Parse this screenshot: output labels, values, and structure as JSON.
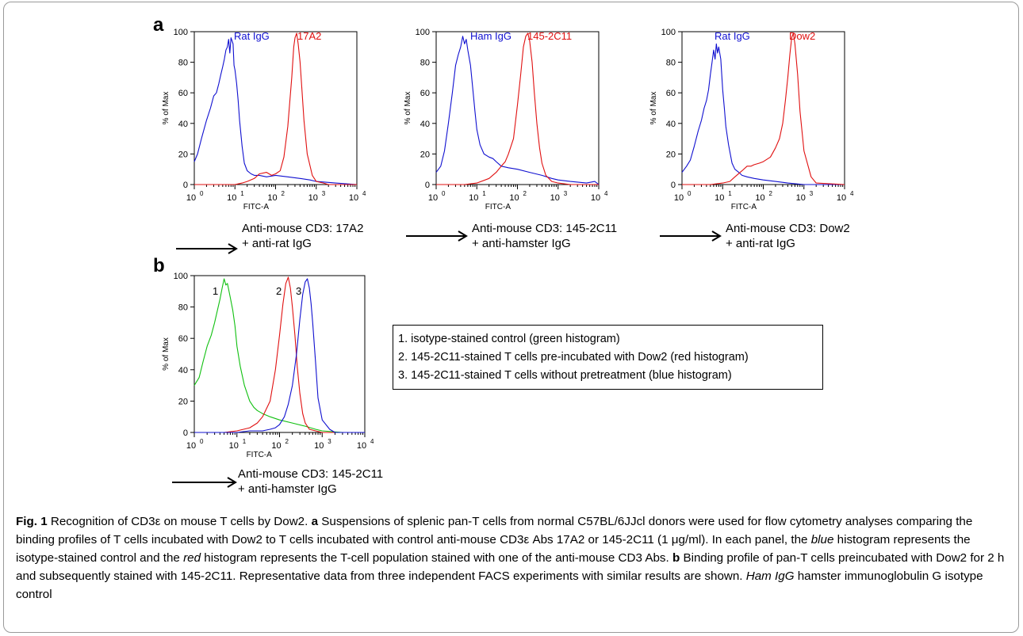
{
  "panel_labels": {
    "a": "a",
    "b": "b"
  },
  "chart_data": [
    {
      "type": "line",
      "ylabel": "% of Max",
      "xlabel": "FITC-A",
      "x_scale": "log",
      "xlim": [
        1,
        10000
      ],
      "ylim": [
        0,
        100
      ],
      "x_ticks": [
        1,
        10,
        100,
        1000,
        10000
      ],
      "x_tick_exp": [
        "0",
        "1",
        "2",
        "3",
        "4"
      ],
      "y_ticks": [
        0,
        20,
        40,
        60,
        80,
        100
      ],
      "labels": [
        {
          "text": "Rat IgG",
          "color": "#1010d0"
        },
        {
          "text": "17A2",
          "color": "#e01010"
        }
      ],
      "series": [
        {
          "name": "Rat IgG",
          "color": "#1010d0",
          "x": [
            1,
            1.2,
            1.5,
            2,
            2.5,
            3,
            3.5,
            4,
            4.5,
            5,
            5.5,
            6,
            6.5,
            7,
            7.5,
            8,
            8.5,
            9,
            9.5,
            10,
            11,
            12,
            13,
            15,
            17,
            20,
            25,
            30,
            40,
            60,
            100,
            200,
            400,
            700,
            1000,
            3000,
            10000
          ],
          "y": [
            15,
            20,
            30,
            42,
            50,
            58,
            60,
            66,
            72,
            77,
            82,
            88,
            90,
            95,
            86,
            96,
            94,
            92,
            78,
            75,
            66,
            55,
            42,
            25,
            14,
            9,
            7,
            6,
            6,
            5,
            6,
            5,
            4,
            3,
            2,
            1,
            0
          ]
        },
        {
          "name": "17A2",
          "color": "#e01010",
          "x": [
            1,
            10,
            15,
            20,
            30,
            40,
            60,
            80,
            100,
            130,
            160,
            200,
            250,
            280,
            300,
            330,
            360,
            400,
            450,
            500,
            600,
            800,
            1000,
            1500,
            2000,
            10000
          ],
          "y": [
            0,
            0,
            1,
            2,
            4,
            7,
            8,
            6,
            7,
            9,
            18,
            38,
            70,
            90,
            96,
            99,
            92,
            80,
            60,
            42,
            20,
            6,
            2,
            1,
            0,
            0
          ]
        }
      ]
    },
    {
      "type": "line",
      "ylabel": "% of Max",
      "xlabel": "FITC-A",
      "x_scale": "log",
      "xlim": [
        1,
        10000
      ],
      "ylim": [
        0,
        100
      ],
      "x_ticks": [
        1,
        10,
        100,
        1000,
        10000
      ],
      "x_tick_exp": [
        "0",
        "1",
        "2",
        "3",
        "4"
      ],
      "y_ticks": [
        0,
        20,
        40,
        60,
        80,
        100
      ],
      "labels": [
        {
          "text": "Ham IgG",
          "color": "#1010d0"
        },
        {
          "text": "145-2C11",
          "color": "#e01010"
        }
      ],
      "series": [
        {
          "name": "Ham IgG",
          "color": "#1010d0",
          "x": [
            1,
            1.3,
            1.6,
            2,
            2.5,
            3,
            3.5,
            4,
            4.5,
            5,
            5.5,
            6,
            7,
            8,
            9,
            10,
            12,
            15,
            20,
            25,
            30,
            40,
            60,
            100,
            200,
            400,
            700,
            1000,
            2000,
            5000,
            8000,
            10000
          ],
          "y": [
            8,
            12,
            22,
            40,
            60,
            78,
            85,
            90,
            97,
            92,
            95,
            88,
            78,
            62,
            48,
            36,
            26,
            20,
            18,
            17,
            15,
            12,
            11,
            10,
            8,
            6,
            4,
            3,
            2,
            1,
            2,
            0
          ]
        },
        {
          "name": "145-2C11",
          "color": "#e01010",
          "x": [
            1,
            5,
            10,
            20,
            30,
            40,
            50,
            60,
            80,
            100,
            120,
            140,
            160,
            180,
            200,
            230,
            260,
            300,
            350,
            400,
            500,
            700,
            1000,
            2000,
            10000
          ],
          "y": [
            0,
            0,
            1,
            4,
            8,
            12,
            15,
            20,
            30,
            52,
            72,
            90,
            97,
            99,
            94,
            80,
            60,
            40,
            24,
            14,
            6,
            2,
            1,
            0,
            0
          ]
        }
      ]
    },
    {
      "type": "line",
      "ylabel": "% of Max",
      "xlabel": "FITC-A",
      "x_scale": "log",
      "xlim": [
        1,
        10000
      ],
      "ylim": [
        0,
        100
      ],
      "x_ticks": [
        1,
        10,
        100,
        1000,
        10000
      ],
      "x_tick_exp": [
        "0",
        "1",
        "2",
        "3",
        "4"
      ],
      "y_ticks": [
        0,
        20,
        40,
        60,
        80,
        100
      ],
      "labels": [
        {
          "text": "Rat IgG",
          "color": "#1010d0"
        },
        {
          "text": "Dow2",
          "color": "#e01010"
        }
      ],
      "series": [
        {
          "name": "Rat IgG",
          "color": "#1010d0",
          "x": [
            1,
            1.3,
            1.6,
            2,
            2.5,
            3,
            3.5,
            4,
            4.5,
            5,
            5.5,
            6,
            6.5,
            7,
            7.5,
            8,
            9,
            10,
            11,
            12,
            14,
            17,
            20,
            25,
            30,
            40,
            60,
            100,
            200,
            400,
            1000,
            3000,
            10000
          ],
          "y": [
            8,
            12,
            16,
            25,
            35,
            42,
            50,
            55,
            62,
            72,
            80,
            88,
            82,
            92,
            86,
            90,
            82,
            62,
            50,
            38,
            26,
            14,
            10,
            8,
            6,
            5,
            4,
            3,
            2,
            1,
            0,
            0,
            0
          ]
        },
        {
          "name": "Dow2",
          "color": "#e01010",
          "x": [
            1,
            5,
            10,
            15,
            20,
            30,
            40,
            50,
            60,
            80,
            100,
            150,
            200,
            250,
            300,
            350,
            400,
            450,
            500,
            550,
            600,
            700,
            800,
            1000,
            1500,
            2000,
            10000
          ],
          "y": [
            0,
            0,
            1,
            2,
            5,
            9,
            12,
            12,
            13,
            14,
            15,
            18,
            24,
            30,
            40,
            55,
            70,
            85,
            96,
            99,
            92,
            72,
            48,
            22,
            5,
            1,
            0
          ]
        }
      ]
    },
    {
      "type": "line",
      "ylabel": "% of Max",
      "xlabel": "FITC-A",
      "x_scale": "log",
      "xlim": [
        1,
        10000
      ],
      "ylim": [
        0,
        100
      ],
      "x_ticks": [
        1,
        10,
        100,
        1000,
        10000
      ],
      "x_tick_exp": [
        "0",
        "1",
        "2",
        "3",
        "4"
      ],
      "y_ticks": [
        0,
        20,
        40,
        60,
        80,
        100
      ],
      "labels": [
        {
          "text": "1",
          "color": "#000000"
        },
        {
          "text": "2",
          "color": "#000000"
        },
        {
          "text": "3",
          "color": "#000000"
        }
      ],
      "series": [
        {
          "name": "1",
          "color": "#10c010",
          "x": [
            1,
            1.3,
            1.6,
            2,
            2.5,
            3,
            3.5,
            4,
            4.5,
            5,
            5.5,
            6,
            7,
            8,
            9,
            10,
            12,
            15,
            20,
            25,
            30,
            40,
            60,
            100,
            200,
            400,
            700,
            1000,
            3000,
            10000
          ],
          "y": [
            30,
            35,
            45,
            55,
            62,
            70,
            78,
            85,
            92,
            98,
            94,
            95,
            86,
            78,
            68,
            55,
            42,
            30,
            20,
            16,
            14,
            12,
            10,
            8,
            6,
            4,
            2,
            1,
            0,
            0
          ]
        },
        {
          "name": "2",
          "color": "#e01010",
          "x": [
            1,
            5,
            10,
            20,
            30,
            40,
            60,
            80,
            100,
            120,
            140,
            160,
            180,
            200,
            230,
            260,
            300,
            350,
            400,
            500,
            700,
            1000,
            2000,
            10000
          ],
          "y": [
            0,
            0,
            1,
            3,
            6,
            10,
            20,
            40,
            62,
            82,
            95,
            99,
            92,
            80,
            62,
            42,
            25,
            12,
            6,
            2,
            1,
            0,
            0,
            0
          ]
        },
        {
          "name": "3",
          "color": "#1010d0",
          "x": [
            1,
            10,
            20,
            40,
            60,
            80,
            100,
            130,
            160,
            200,
            250,
            300,
            350,
            400,
            450,
            500,
            550,
            600,
            700,
            800,
            1000,
            1500,
            2000,
            10000
          ],
          "y": [
            0,
            0,
            1,
            1,
            2,
            3,
            5,
            10,
            18,
            30,
            50,
            72,
            88,
            96,
            98,
            92,
            82,
            70,
            45,
            22,
            8,
            2,
            0,
            0
          ]
        }
      ]
    }
  ],
  "captions": {
    "a1": {
      "line1": "Anti-mouse CD3: 17A2",
      "line2": "+ anti-rat IgG"
    },
    "a2": {
      "line1": "Anti-mouse CD3: 145-2C11",
      "line2": "+ anti-hamster IgG"
    },
    "a3": {
      "line1": "Anti-mouse CD3: Dow2",
      "line2": "+ anti-rat IgG"
    },
    "b1": {
      "line1": "Anti-mouse CD3: 145-2C11",
      "line2": "+ anti-hamster IgG"
    }
  },
  "legend_box": {
    "items": [
      "1. isotype-stained control (green histogram)",
      "2. 145-2C11-stained T cells pre-incubated with Dow2 (red histogram)",
      "3. 145-2C11-stained T cells without pretreatment (blue histogram)"
    ]
  },
  "figure_caption": {
    "fig_label": "Fig. 1",
    "t1": " Recognition of CD3ε on mouse T cells by Dow2. ",
    "a": "a",
    "t2": " Suspensions of splenic pan-T cells from normal C57BL/6JJcl donors were used for flow cytometry analyses comparing the binding profiles of T cells incubated with Dow2 to T cells incubated with control anti-mouse CD3ε Abs 17A2 or 145-2C11 (1 μg/ml). In each panel, the ",
    "blue": "blue",
    "t3": " histogram represents the isotype-stained control and the ",
    "red": "red",
    "t4": " histogram represents the T-cell population stained with one of the anti-mouse CD3 Abs. ",
    "b": "b",
    "t5": " Binding profile of pan-T cells preincubated with Dow2 for 2 h and subsequently stained with 145-2C11. Representative data from three independent FACS experiments with similar results are shown. ",
    "hamigg": "Ham IgG",
    "t6": " hamster immunoglobulin G isotype control"
  }
}
